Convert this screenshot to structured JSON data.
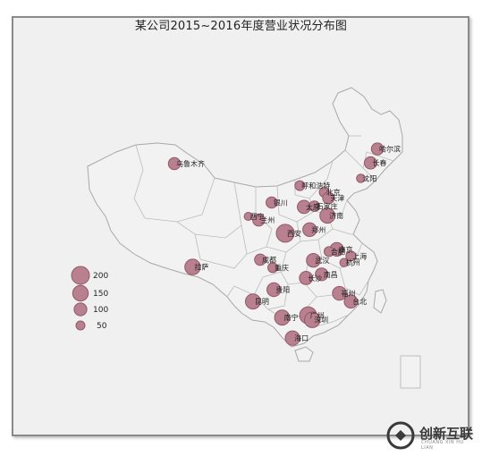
{
  "title": "某公司2015~2016年度营业状况分布图",
  "colors": {
    "bubble_fill": "#b9808f",
    "bubble_stroke": "#8f5a68",
    "land": "#f2f2f2",
    "border": "#a8a8a8"
  },
  "legend": {
    "items": [
      {
        "label": "200",
        "value": 200
      },
      {
        "label": "150",
        "value": 150
      },
      {
        "label": "100",
        "value": 100
      },
      {
        "label": "50",
        "value": 50
      }
    ]
  },
  "cities": [
    {
      "name": "哈尔滨",
      "lon": 126.6,
      "lat": 45.8,
      "value": 90
    },
    {
      "name": "长春",
      "lon": 125.3,
      "lat": 43.9,
      "value": 95
    },
    {
      "name": "沈阳",
      "lon": 123.4,
      "lat": 41.8,
      "value": 45
    },
    {
      "name": "乌鲁木齐",
      "lon": 87.6,
      "lat": 43.8,
      "value": 90
    },
    {
      "name": "呼和浩特",
      "lon": 111.7,
      "lat": 40.8,
      "value": 60
    },
    {
      "name": "北京",
      "lon": 116.4,
      "lat": 39.9,
      "value": 60
    },
    {
      "name": "天津",
      "lon": 117.2,
      "lat": 39.1,
      "value": 85
    },
    {
      "name": "银川",
      "lon": 106.3,
      "lat": 38.5,
      "value": 80
    },
    {
      "name": "太原",
      "lon": 112.5,
      "lat": 37.9,
      "value": 110
    },
    {
      "name": "石家庄",
      "lon": 114.5,
      "lat": 38.0,
      "value": 70
    },
    {
      "name": "济南",
      "lon": 117.0,
      "lat": 36.7,
      "value": 140
    },
    {
      "name": "西宁",
      "lon": 101.8,
      "lat": 36.6,
      "value": 40
    },
    {
      "name": "兰州",
      "lon": 103.8,
      "lat": 36.1,
      "value": 90
    },
    {
      "name": "郑州",
      "lon": 113.6,
      "lat": 34.8,
      "value": 120
    },
    {
      "name": "西安",
      "lon": 108.9,
      "lat": 34.3,
      "value": 200
    },
    {
      "name": "南京",
      "lon": 118.8,
      "lat": 32.1,
      "value": 115
    },
    {
      "name": "合肥",
      "lon": 117.3,
      "lat": 31.8,
      "value": 60
    },
    {
      "name": "上海",
      "lon": 121.5,
      "lat": 31.2,
      "value": 60
    },
    {
      "name": "杭州",
      "lon": 120.2,
      "lat": 30.3,
      "value": 45
    },
    {
      "name": "武汉",
      "lon": 114.3,
      "lat": 30.6,
      "value": 120
    },
    {
      "name": "成都",
      "lon": 104.1,
      "lat": 30.7,
      "value": 80
    },
    {
      "name": "重庆",
      "lon": 106.5,
      "lat": 29.6,
      "value": 60
    },
    {
      "name": "拉萨",
      "lon": 91.1,
      "lat": 29.7,
      "value": 150
    },
    {
      "name": "南昌",
      "lon": 115.9,
      "lat": 28.7,
      "value": 100
    },
    {
      "name": "长沙",
      "lon": 112.9,
      "lat": 28.2,
      "value": 110
    },
    {
      "name": "贵阳",
      "lon": 106.7,
      "lat": 26.6,
      "value": 120
    },
    {
      "name": "福州",
      "lon": 119.3,
      "lat": 26.1,
      "value": 120
    },
    {
      "name": "台北",
      "lon": 121.5,
      "lat": 25.0,
      "value": 110
    },
    {
      "name": "昆明",
      "lon": 102.7,
      "lat": 25.0,
      "value": 140
    },
    {
      "name": "广州",
      "lon": 113.3,
      "lat": 23.1,
      "value": 180
    },
    {
      "name": "深圳",
      "lon": 114.1,
      "lat": 22.5,
      "value": 150
    },
    {
      "name": "南宁",
      "lon": 108.3,
      "lat": 22.8,
      "value": 140
    },
    {
      "name": "海口",
      "lon": 110.3,
      "lat": 20.0,
      "value": 130
    }
  ],
  "watermark": {
    "text": "创新互联",
    "sub": "CHUANG XIN HU LIAN"
  }
}
